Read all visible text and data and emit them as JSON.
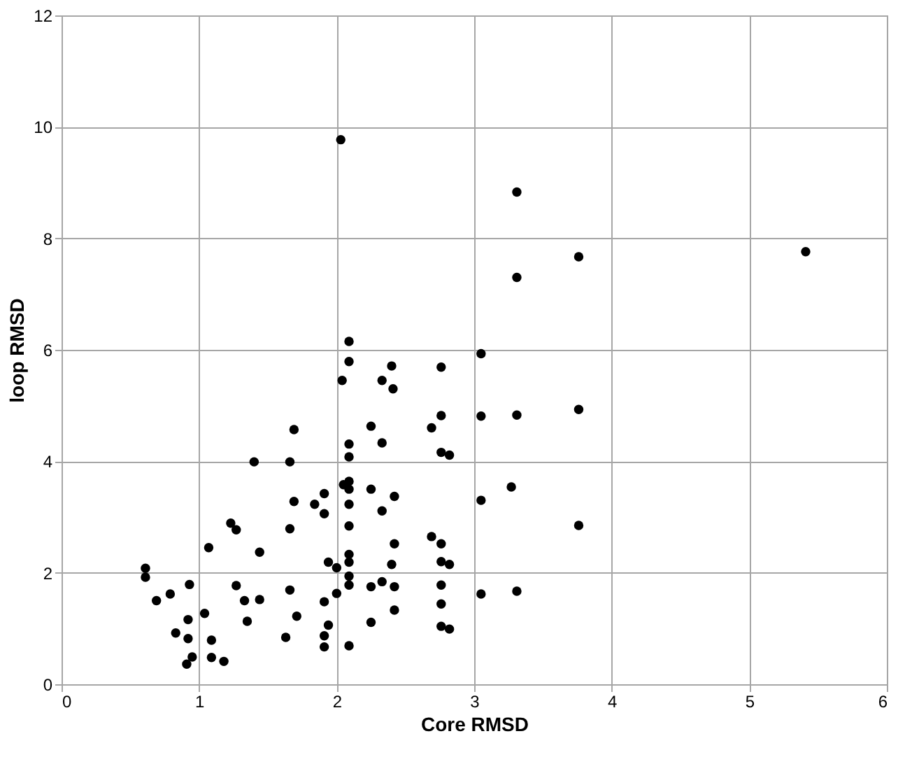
{
  "chart_data": {
    "type": "scatter",
    "xlabel": "Core RMSD",
    "ylabel": "loop RMSD",
    "x": [
      1.4,
      1.66,
      1.69,
      1.23,
      1.27,
      1.66,
      1.07,
      1.44,
      0.61,
      0.61,
      0.93,
      0.79,
      0.69,
      1.27,
      1.33,
      1.44,
      1.66,
      1.04,
      0.92,
      1.35,
      1.71,
      0.83,
      0.92,
      1.09,
      1.63,
      0.95,
      0.91,
      1.09,
      1.18,
      1.69,
      3.31,
      2.09,
      2.09,
      2.04,
      2.4,
      2.33,
      2.41,
      2.76,
      3.05,
      3.05,
      3.31,
      2.76,
      2.69,
      2.25,
      2.33,
      2.09,
      2.09,
      2.76,
      2.82,
      3.05,
      3.27,
      1.91,
      1.84,
      1.91,
      2.05,
      2.09,
      2.09,
      2.09,
      2.25,
      2.33,
      2.42,
      2.09,
      2.69,
      2.76,
      2.42,
      2.09,
      2.09,
      1.94,
      2.0,
      2.4,
      2.76,
      2.82,
      2.09,
      2.09,
      2.25,
      2.33,
      2.42,
      2.76,
      3.05,
      3.31,
      2.0,
      1.91,
      2.76,
      2.42,
      1.94,
      2.25,
      2.76,
      2.82,
      1.91,
      1.91,
      2.09,
      3.76,
      5.41,
      3.76,
      3.76,
      3.31,
      2.03
    ],
    "series": [
      {
        "color": "#000000",
        "values": [
          3.99,
          3.99,
          3.28,
          2.89,
          2.77,
          2.79,
          2.45,
          2.37,
          2.08,
          1.92,
          1.79,
          1.62,
          1.5,
          1.77,
          1.5,
          1.52,
          1.69,
          1.27,
          1.16,
          1.13,
          1.22,
          0.92,
          0.82,
          0.79,
          0.84,
          0.49,
          0.36,
          0.48,
          0.41,
          4.57,
          7.3,
          6.15,
          5.79,
          5.45,
          5.71,
          5.45,
          5.3,
          5.69,
          5.93,
          4.81,
          4.83,
          4.82,
          4.6,
          4.63,
          4.33,
          4.31,
          4.08,
          4.16,
          4.11,
          3.3,
          3.54,
          3.42,
          3.23,
          3.06,
          3.58,
          3.64,
          3.5,
          3.23,
          3.5,
          3.11,
          3.37,
          2.84,
          2.65,
          2.52,
          2.52,
          2.33,
          2.19,
          2.19,
          2.09,
          2.15,
          2.2,
          2.15,
          1.94,
          1.78,
          1.75,
          1.84,
          1.75,
          1.78,
          1.62,
          1.67,
          1.63,
          1.48,
          1.44,
          1.33,
          1.06,
          1.11,
          1.04,
          0.99,
          0.87,
          0.67,
          0.69,
          7.67,
          7.76,
          4.93,
          2.85,
          8.83,
          9.77
        ]
      }
    ],
    "xlim": [
      0,
      6
    ],
    "xticks": [
      0,
      1,
      2,
      3,
      4,
      5,
      6
    ],
    "ylim": [
      0,
      12
    ],
    "yticks": [
      0,
      2,
      4,
      6,
      8,
      10,
      12
    ],
    "grid": true,
    "marker": "circle"
  }
}
